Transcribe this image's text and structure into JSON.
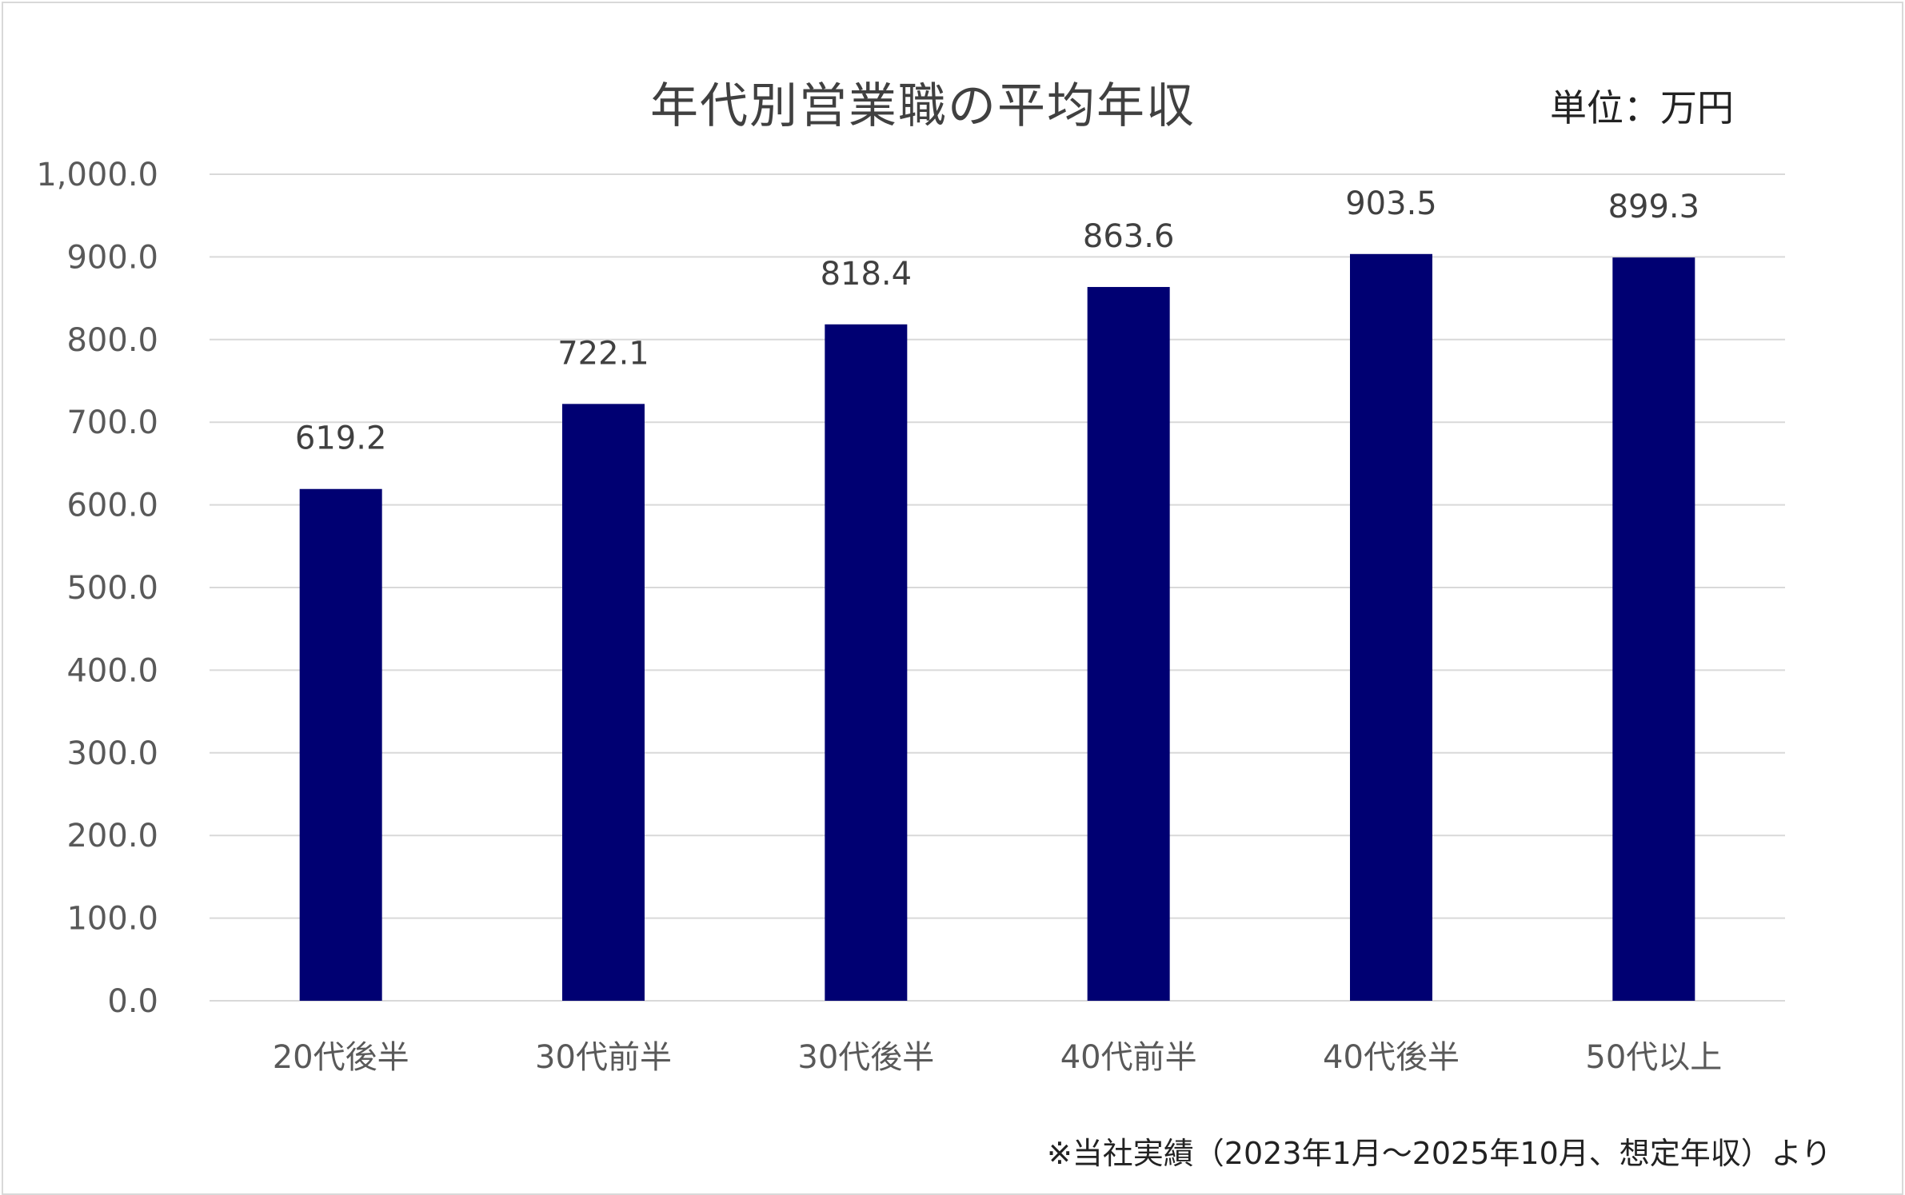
{
  "chart_data": {
    "type": "bar",
    "title": "年代別営業職の平均年収",
    "unit_label": "単位：万円",
    "footnote": "※当社実績（2023年1月～2025年10月、想定年収）より",
    "categories": [
      "20代後半",
      "30代前半",
      "30代後半",
      "40代前半",
      "40代後半",
      "50代以上"
    ],
    "values": [
      619.2,
      722.1,
      818.4,
      863.6,
      903.5,
      899.3
    ],
    "value_labels": [
      "619.2",
      "722.1",
      "818.4",
      "863.6",
      "903.5",
      "899.3"
    ],
    "ylim": [
      0,
      1000
    ],
    "y_ticks": [
      "0.0",
      "100.0",
      "200.0",
      "300.0",
      "400.0",
      "500.0",
      "600.0",
      "700.0",
      "800.0",
      "900.0",
      "1,000.0"
    ],
    "xlabel": "",
    "ylabel": "",
    "grid": true,
    "legend": "none",
    "bar_color": "#000072",
    "grid_color": "#d9d9d9"
  }
}
